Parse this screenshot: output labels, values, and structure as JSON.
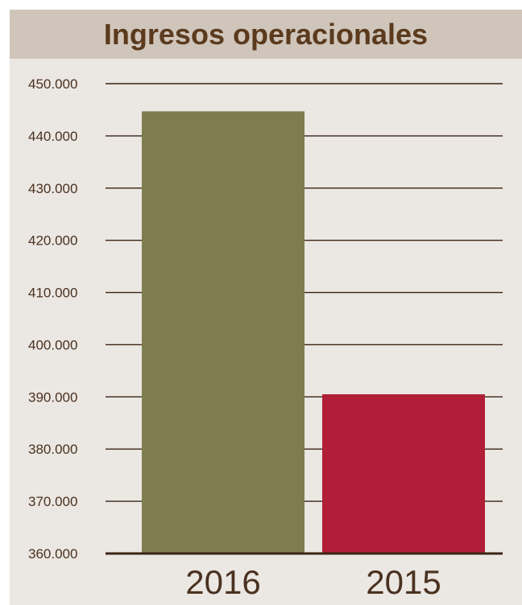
{
  "chart_data": {
    "type": "bar",
    "title": "Ingresos operacionales",
    "xlabel": "",
    "ylabel": "",
    "categories": [
      "2016",
      "2015"
    ],
    "values": [
      444700,
      390500
    ],
    "ylim": [
      360000,
      450000
    ],
    "yticks": [
      {
        "value": 450000,
        "label": "450.000"
      },
      {
        "value": 440000,
        "label": "440.000"
      },
      {
        "value": 430000,
        "label": "430.000"
      },
      {
        "value": 420000,
        "label": "420.000"
      },
      {
        "value": 410000,
        "label": "410.000"
      },
      {
        "value": 400000,
        "label": "400.000"
      },
      {
        "value": 390000,
        "label": "390.000"
      },
      {
        "value": 380000,
        "label": "380.000"
      },
      {
        "value": 370000,
        "label": "370.000"
      },
      {
        "value": 360000,
        "label": "360.000"
      }
    ],
    "grid": true,
    "legend": "none",
    "colors": {
      "bars": [
        "#7f7d50",
        "#b01e37"
      ],
      "title_band": "#cfc5ba",
      "panel": "#ebe7e2",
      "title_text": "#5b3a1d",
      "text": "#4a3220",
      "grid": "#3b2414"
    }
  }
}
